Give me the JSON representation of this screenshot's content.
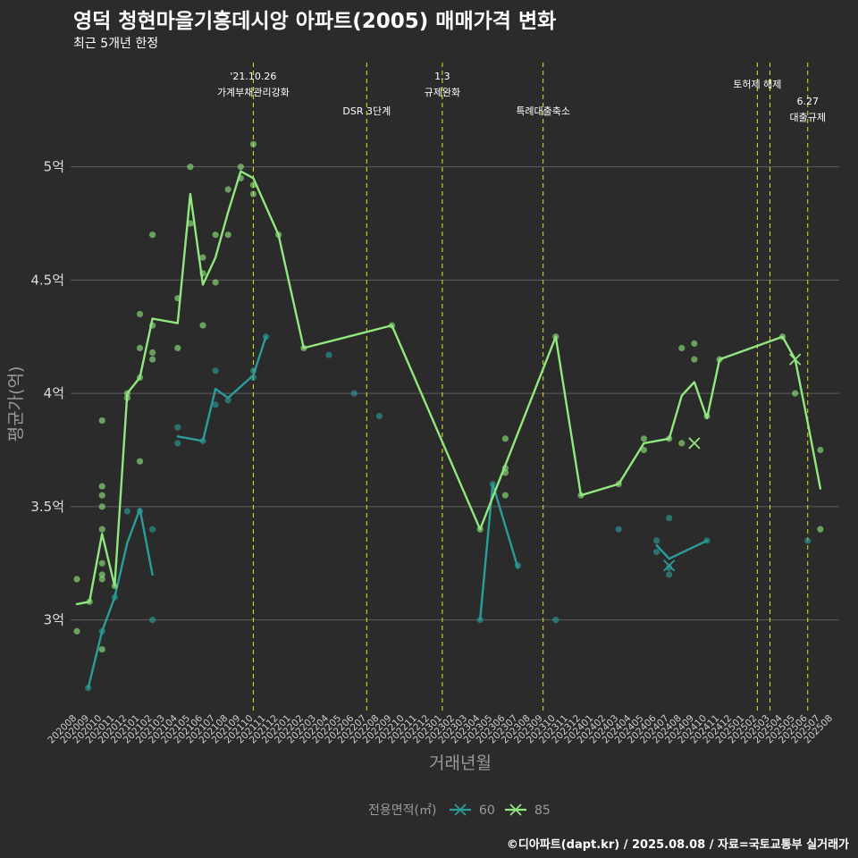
{
  "chart_data": {
    "type": "line",
    "title": "영덕 청현마을기흥데시앙 아파트(2005) 매매가격 변화",
    "subtitle": "최근 5개년 한정",
    "xlabel": "거래년월",
    "ylabel": "평균가(억)",
    "caption": "©디아파트(dapt.kr) / 2025.08.08 / 자료=국토교통부 실거래가",
    "ylim": [
      2.6,
      5.48
    ],
    "y_ticks": [
      3,
      3.5,
      4,
      4.5,
      5
    ],
    "y_tick_labels": [
      "3억",
      "3.5억",
      "4억",
      "4.5억",
      "5억"
    ],
    "x_categories": [
      "202008",
      "202009",
      "202010",
      "202011",
      "202012",
      "202101",
      "202102",
      "202103",
      "202104",
      "202105",
      "202106",
      "202107",
      "202108",
      "202109",
      "202110",
      "202111",
      "202112",
      "202201",
      "202202",
      "202203",
      "202204",
      "202205",
      "202206",
      "202207",
      "202208",
      "202209",
      "202210",
      "202211",
      "202212",
      "202301",
      "202302",
      "202303",
      "202304",
      "202305",
      "202306",
      "202307",
      "202308",
      "202309",
      "202310",
      "202311",
      "202312",
      "202401",
      "202402",
      "202403",
      "202404",
      "202405",
      "202406",
      "202407",
      "202408",
      "202409",
      "202410",
      "202411",
      "202412",
      "202501",
      "202502",
      "202503",
      "202504",
      "202505",
      "202506",
      "202507",
      "202508"
    ],
    "legend_title": "전용면적(㎡)",
    "series": [
      {
        "name": "60",
        "color": "#2a9d9b",
        "line": [
          [
            0.9,
            2.7
          ],
          [
            2,
            2.95
          ],
          [
            3,
            3.1
          ],
          [
            4,
            3.34
          ],
          [
            5,
            3.49
          ],
          [
            6,
            3.2
          ],
          null,
          [
            8,
            3.81
          ],
          [
            10,
            3.79
          ],
          [
            11,
            4.02
          ],
          [
            12,
            3.98
          ],
          [
            14,
            4.08
          ],
          [
            15,
            4.25
          ],
          null,
          [
            32,
            3.0
          ],
          [
            33,
            3.6
          ],
          [
            35,
            3.23
          ],
          null,
          [
            46,
            3.33
          ],
          [
            47,
            3.27
          ],
          [
            50,
            3.35
          ]
        ],
        "points": [
          [
            0.9,
            2.7
          ],
          [
            2,
            2.95
          ],
          [
            3,
            3.1
          ],
          [
            4,
            3.48
          ],
          [
            5,
            3.48
          ],
          [
            6,
            3.4
          ],
          [
            6,
            3.0
          ],
          [
            8,
            3.85
          ],
          [
            8,
            3.78
          ],
          [
            10,
            3.79
          ],
          [
            11,
            4.1
          ],
          [
            11,
            3.95
          ],
          [
            12,
            3.97
          ],
          [
            14,
            4.1
          ],
          [
            14,
            4.07
          ],
          [
            15,
            4.25
          ],
          [
            20,
            4.17
          ],
          [
            22,
            4.0
          ],
          [
            24,
            3.9
          ],
          [
            32,
            3.0
          ],
          [
            33,
            3.6
          ],
          [
            35,
            3.24
          ],
          [
            38,
            3.0
          ],
          [
            43,
            3.4
          ],
          [
            46,
            3.35
          ],
          [
            46,
            3.3
          ],
          [
            47,
            3.45
          ],
          [
            47,
            3.23
          ],
          [
            47,
            3.2
          ],
          [
            50,
            3.35
          ],
          [
            58,
            3.35
          ]
        ],
        "markers_x": [
          [
            47,
            3.24
          ]
        ]
      },
      {
        "name": "85",
        "color": "#90e87e",
        "line": [
          [
            0,
            3.07
          ],
          [
            1,
            3.08
          ],
          [
            2,
            3.38
          ],
          [
            3,
            3.15
          ],
          [
            4,
            4.0
          ],
          [
            5,
            4.07
          ],
          [
            6,
            4.33
          ],
          [
            8,
            4.31
          ],
          [
            9,
            4.88
          ],
          [
            10,
            4.48
          ],
          [
            11,
            4.6
          ],
          [
            12,
            4.8
          ],
          [
            13,
            4.98
          ],
          [
            14,
            4.95
          ],
          [
            16,
            4.7
          ],
          [
            18,
            4.2
          ],
          [
            25,
            4.3
          ],
          [
            32,
            3.4
          ],
          [
            38,
            4.25
          ],
          [
            40,
            3.55
          ],
          [
            43,
            3.6
          ],
          [
            45,
            3.78
          ],
          [
            47,
            3.8
          ],
          [
            48,
            3.99
          ],
          [
            49,
            4.05
          ],
          [
            50,
            3.89
          ],
          [
            51,
            4.15
          ],
          [
            56,
            4.25
          ],
          [
            57,
            4.15
          ],
          [
            58,
            3.87
          ],
          [
            59,
            3.58
          ]
        ],
        "points": [
          [
            0,
            3.18
          ],
          [
            0,
            2.95
          ],
          [
            1,
            3.08
          ],
          [
            2,
            3.88
          ],
          [
            2,
            3.59
          ],
          [
            2,
            3.55
          ],
          [
            2,
            3.5
          ],
          [
            2,
            3.4
          ],
          [
            2,
            3.25
          ],
          [
            2,
            3.2
          ],
          [
            2,
            3.18
          ],
          [
            2,
            2.87
          ],
          [
            3,
            3.15
          ],
          [
            4,
            4.0
          ],
          [
            4,
            3.98
          ],
          [
            5,
            4.35
          ],
          [
            5,
            4.2
          ],
          [
            5,
            4.07
          ],
          [
            5,
            3.7
          ],
          [
            6,
            4.7
          ],
          [
            6,
            4.3
          ],
          [
            6,
            4.18
          ],
          [
            6,
            4.15
          ],
          [
            8,
            4.42
          ],
          [
            8,
            4.2
          ],
          [
            9,
            5.0
          ],
          [
            9,
            4.75
          ],
          [
            10,
            4.6
          ],
          [
            10,
            4.53
          ],
          [
            10,
            4.3
          ],
          [
            11,
            4.7
          ],
          [
            11,
            4.49
          ],
          [
            12,
            4.9
          ],
          [
            12,
            4.7
          ],
          [
            13,
            5.0
          ],
          [
            13,
            4.95
          ],
          [
            14,
            5.1
          ],
          [
            14,
            4.92
          ],
          [
            14,
            4.88
          ],
          [
            16,
            4.7
          ],
          [
            18,
            4.2
          ],
          [
            25,
            4.3
          ],
          [
            32,
            3.4
          ],
          [
            34,
            3.8
          ],
          [
            34,
            3.67
          ],
          [
            34,
            3.65
          ],
          [
            34,
            3.55
          ],
          [
            38,
            4.25
          ],
          [
            40,
            3.55
          ],
          [
            43,
            3.6
          ],
          [
            45,
            3.8
          ],
          [
            45,
            3.75
          ],
          [
            47,
            3.8
          ],
          [
            48,
            4.2
          ],
          [
            48,
            3.78
          ],
          [
            49,
            4.22
          ],
          [
            49,
            4.15
          ],
          [
            50,
            3.9
          ],
          [
            51,
            4.15
          ],
          [
            56,
            4.25
          ],
          [
            57,
            4.0
          ],
          [
            59,
            3.75
          ],
          [
            59,
            3.4
          ]
        ],
        "markers_x": [
          [
            49,
            3.78
          ],
          [
            57,
            4.15
          ]
        ]
      }
    ],
    "events": [
      {
        "x": 14,
        "lines": [
          "'21.10.26",
          "가계부채관리강화"
        ]
      },
      {
        "x": 23,
        "lines": [
          "DSR 3단계"
        ]
      },
      {
        "x": 29,
        "lines": [
          "1.3",
          "규제완화"
        ]
      },
      {
        "x": 37,
        "lines": [
          "특례대출축소"
        ]
      },
      {
        "x": 54,
        "lines": [
          "토허제 해제"
        ]
      },
      {
        "x": 55,
        "lines": []
      },
      {
        "x": 58,
        "lines": [
          "6.27",
          "대출규제"
        ]
      }
    ]
  }
}
